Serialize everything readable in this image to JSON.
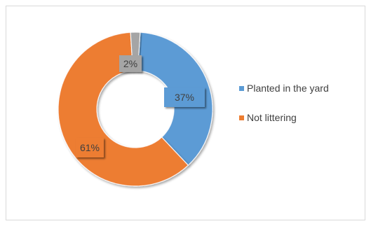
{
  "chart_data": {
    "type": "donut",
    "slices": [
      {
        "label": "Planted in the yard",
        "value": 37,
        "display": "37%",
        "color": "#5b9bd5"
      },
      {
        "label": "Not littering",
        "value": 61,
        "display": "61%",
        "color": "#ed7d31"
      },
      {
        "label": "",
        "value": 2,
        "display": "2%",
        "color": "#a5a5a5"
      }
    ],
    "legend": {
      "placement": "right",
      "items": [
        {
          "label": "Planted in the yard",
          "color": "#5b9bd5"
        },
        {
          "label": "Not littering",
          "color": "#ed7d31"
        }
      ]
    }
  }
}
